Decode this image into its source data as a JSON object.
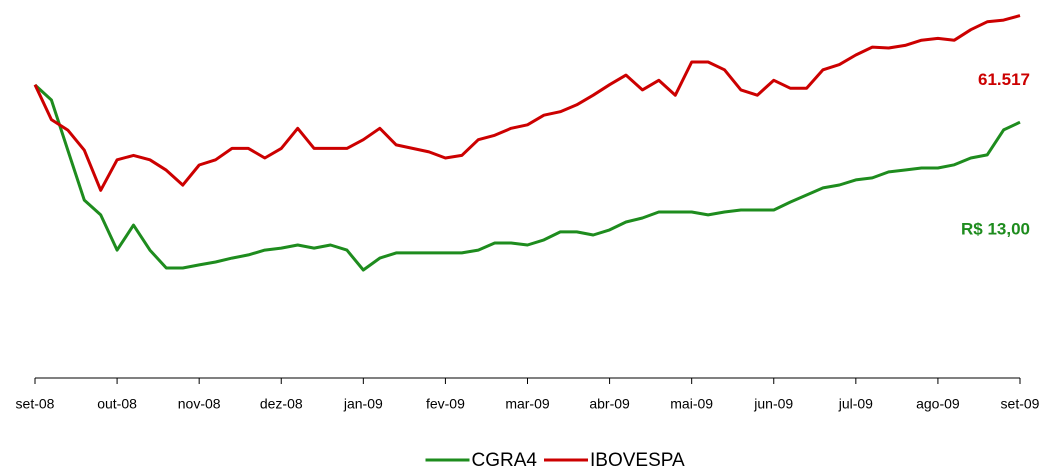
{
  "chart_data": {
    "type": "line",
    "categories": [
      "set-08",
      null,
      null,
      null,
      null,
      "out-08",
      null,
      null,
      null,
      null,
      "nov-08",
      null,
      null,
      null,
      null,
      "dez-08",
      null,
      null,
      null,
      null,
      "jan-09",
      null,
      null,
      null,
      null,
      "fev-09",
      null,
      null,
      null,
      null,
      "mar-09",
      null,
      null,
      null,
      null,
      "abr-09",
      null,
      null,
      null,
      null,
      "mai-09",
      null,
      null,
      null,
      null,
      "jun-09",
      null,
      null,
      null,
      null,
      "jul-09",
      null,
      null,
      null,
      null,
      "ago-09",
      null,
      null,
      null,
      null,
      "set-09"
    ],
    "series": [
      {
        "name": "CGRA4",
        "color": "#1e8c1e",
        "axis": "y2",
        "values": [
          14.31,
          13.78,
          12.02,
          10.26,
          9.74,
          8.5,
          9.38,
          8.5,
          7.87,
          7.87,
          7.98,
          8.08,
          8.22,
          8.33,
          8.5,
          8.57,
          8.68,
          8.57,
          8.68,
          8.5,
          7.8,
          8.22,
          8.4,
          8.4,
          8.4,
          8.4,
          8.4,
          8.5,
          8.75,
          8.75,
          8.68,
          8.86,
          9.14,
          9.14,
          9.03,
          9.21,
          9.49,
          9.63,
          9.84,
          9.84,
          9.84,
          9.74,
          9.84,
          9.91,
          9.91,
          9.91,
          10.19,
          10.44,
          10.69,
          10.79,
          10.97,
          11.04,
          11.25,
          11.32,
          11.39,
          11.39,
          11.5,
          11.74,
          11.85,
          12.73,
          13.0
        ]
      },
      {
        "name": "IBOVESPA",
        "color": "#cc0000",
        "values": [
          53600,
          49600,
          48400,
          46100,
          41500,
          45000,
          45500,
          45000,
          43800,
          42100,
          44400,
          45000,
          46300,
          46300,
          45200,
          46300,
          48600,
          46300,
          46300,
          46300,
          47300,
          48600,
          46700,
          46300,
          45900,
          45200,
          45500,
          47300,
          47800,
          48600,
          49000,
          50100,
          50500,
          51300,
          52400,
          53600,
          54700,
          53000,
          54100,
          52400,
          56200,
          56200,
          55300,
          53000,
          52400,
          54100,
          53200,
          53200,
          55300,
          55900,
          57000,
          57900,
          57800,
          58100,
          58700,
          58900,
          58700,
          59900,
          60800,
          61000,
          61517
        ]
      }
    ],
    "ylim": [
      20000,
      63300
    ],
    "y2lim": [
      4,
      17.3
    ],
    "annotations": [
      {
        "text": "61.517",
        "series": 1
      },
      {
        "text": "R$ 13,00",
        "series": 0
      }
    ],
    "legend": "bottom"
  }
}
